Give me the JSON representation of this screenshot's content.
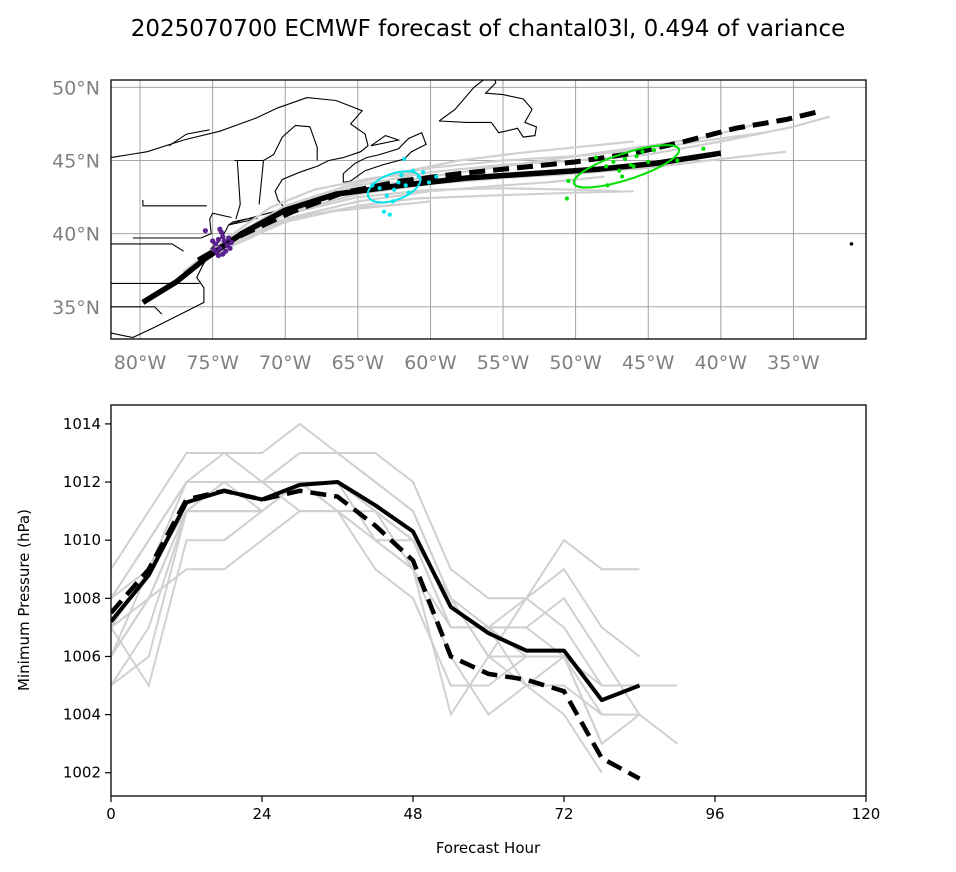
{
  "title": "2025070700 ECMWF forecast of chantal03l, 0.494 of variance",
  "chart_data": [
    {
      "type": "map",
      "lon_range": [
        -82.0,
        -30.0
      ],
      "lat_range": [
        32.8,
        50.5
      ],
      "grid": true,
      "lon_ticks": [
        -80,
        -75,
        -70,
        -65,
        -60,
        -55,
        -50,
        -45,
        -40,
        -35
      ],
      "lon_tick_labels": [
        "80°W",
        "75°W",
        "70°W",
        "65°W",
        "60°W",
        "55°W",
        "50°W",
        "45°W",
        "40°W",
        "35°W"
      ],
      "lat_ticks": [
        35,
        40,
        45,
        50
      ],
      "lat_tick_labels": [
        "35°N",
        "40°N",
        "45°N",
        "50°N"
      ],
      "colors": {
        "ensemble": "#d0d0d0",
        "mean": "#000000",
        "ellipse_day2": "#00e5ee",
        "ellipse_day4": "#00e000",
        "points_day1": "#5b1f8f"
      },
      "mean_track": [
        [
          -79.8,
          35.3
        ],
        [
          -77.5,
          36.7
        ],
        [
          -75.5,
          38.3
        ],
        [
          -73.0,
          40.0
        ],
        [
          -70.0,
          41.6
        ],
        [
          -66.5,
          42.7
        ],
        [
          -62.0,
          43.3
        ],
        [
          -57.5,
          43.8
        ],
        [
          -53.0,
          44.1
        ],
        [
          -48.5,
          44.4
        ],
        [
          -44.5,
          44.8
        ],
        [
          -40.0,
          45.5
        ]
      ],
      "control_track": [
        [
          -76.0,
          38.2
        ],
        [
          -73.0,
          39.9
        ],
        [
          -69.5,
          41.5
        ],
        [
          -66.0,
          42.8
        ],
        [
          -62.0,
          43.6
        ],
        [
          -58.0,
          44.1
        ],
        [
          -54.0,
          44.5
        ],
        [
          -50.0,
          44.9
        ],
        [
          -46.0,
          45.5
        ],
        [
          -42.5,
          46.3
        ],
        [
          -39.0,
          47.2
        ],
        [
          -35.5,
          47.8
        ],
        [
          -33.0,
          48.4
        ]
      ],
      "ensemble_tracks": [
        [
          [
            -77.0,
            37.4
          ],
          [
            -74.0,
            39.6
          ],
          [
            -70.0,
            41.9
          ],
          [
            -65.0,
            43.5
          ],
          [
            -60.0,
            44.5
          ],
          [
            -55.0,
            45.0
          ],
          [
            -50.0,
            45.3
          ],
          [
            -45.0,
            45.8
          ],
          [
            -40.0,
            46.5
          ],
          [
            -37.0,
            46.9
          ]
        ],
        [
          [
            -77.0,
            37.4
          ],
          [
            -74.0,
            39.4
          ],
          [
            -70.0,
            41.4
          ],
          [
            -65.0,
            42.7
          ],
          [
            -60.0,
            43.4
          ],
          [
            -55.0,
            43.8
          ],
          [
            -50.0,
            44.1
          ],
          [
            -45.0,
            44.5
          ],
          [
            -40.0,
            45.1
          ],
          [
            -35.5,
            45.6
          ]
        ],
        [
          [
            -77.0,
            37.4
          ],
          [
            -74.0,
            39.2
          ],
          [
            -70.0,
            41.0
          ],
          [
            -65.0,
            42.2
          ],
          [
            -60.0,
            42.9
          ],
          [
            -55.0,
            43.3
          ],
          [
            -52.0,
            43.5
          ],
          [
            -48.0,
            43.9
          ]
        ],
        [
          [
            -77.0,
            37.4
          ],
          [
            -74.0,
            39.0
          ],
          [
            -70.0,
            40.8
          ],
          [
            -65.0,
            41.9
          ],
          [
            -61.0,
            42.4
          ],
          [
            -56.0,
            42.6
          ],
          [
            -50.0,
            42.8
          ],
          [
            -46.0,
            42.9
          ]
        ],
        [
          [
            -77.0,
            37.4
          ],
          [
            -74.0,
            39.5
          ],
          [
            -70.0,
            41.7
          ],
          [
            -66.0,
            43.2
          ],
          [
            -62.0,
            44.2
          ],
          [
            -58.0,
            45.0
          ],
          [
            -54.0,
            45.5
          ],
          [
            -50.0,
            45.9
          ],
          [
            -46.0,
            46.3
          ]
        ],
        [
          [
            -77.0,
            37.4
          ],
          [
            -74.0,
            39.3
          ],
          [
            -71.0,
            40.8
          ],
          [
            -67.0,
            41.5
          ],
          [
            -63.0,
            41.9
          ],
          [
            -60.0,
            42.2
          ]
        ],
        [
          [
            -77.0,
            37.4
          ],
          [
            -74.0,
            39.7
          ],
          [
            -71.0,
            41.8
          ],
          [
            -68.0,
            43.0
          ],
          [
            -64.0,
            43.8
          ],
          [
            -61.0,
            44.1
          ]
        ],
        [
          [
            -77.0,
            37.4
          ],
          [
            -74.0,
            39.3
          ],
          [
            -70.0,
            41.3
          ],
          [
            -65.0,
            42.5
          ],
          [
            -60.0,
            43.0
          ],
          [
            -55.0,
            43.1
          ],
          [
            -50.0,
            43.0
          ],
          [
            -47.0,
            42.9
          ]
        ],
        [
          [
            -77.0,
            37.4
          ],
          [
            -74.0,
            39.5
          ],
          [
            -70.0,
            41.6
          ],
          [
            -65.0,
            43.0
          ],
          [
            -60.0,
            43.9
          ],
          [
            -55.0,
            44.6
          ],
          [
            -50.0,
            45.3
          ],
          [
            -45.0,
            46.0
          ],
          [
            -41.0,
            46.6
          ],
          [
            -37.5,
            47.5
          ]
        ],
        [
          [
            -77.0,
            37.4
          ],
          [
            -74.0,
            39.2
          ],
          [
            -70.0,
            40.9
          ],
          [
            -66.0,
            41.7
          ],
          [
            -62.0,
            42.0
          ]
        ],
        [
          [
            -77.0,
            37.4
          ],
          [
            -74.0,
            39.6
          ],
          [
            -70.0,
            41.8
          ],
          [
            -65.0,
            43.3
          ],
          [
            -60.0,
            44.2
          ],
          [
            -55.0,
            44.7
          ],
          [
            -50.0,
            45.0
          ],
          [
            -45.0,
            45.4
          ],
          [
            -40.0,
            46.3
          ],
          [
            -35.0,
            47.3
          ],
          [
            -32.5,
            48.0
          ]
        ]
      ],
      "day1_points": [
        [
          -74.8,
          39.3
        ],
        [
          -74.5,
          39.0
        ],
        [
          -74.2,
          39.5
        ],
        [
          -74.9,
          38.9
        ],
        [
          -74.3,
          39.8
        ],
        [
          -74.6,
          39.6
        ],
        [
          -74.0,
          39.2
        ],
        [
          -74.7,
          38.7
        ],
        [
          -74.4,
          40.1
        ],
        [
          -73.9,
          39.7
        ],
        [
          -74.1,
          38.8
        ],
        [
          -75.0,
          39.5
        ],
        [
          -74.5,
          40.3
        ],
        [
          -73.8,
          39.0
        ],
        [
          -74.6,
          38.5
        ],
        [
          -75.5,
          40.2
        ],
        [
          -74.3,
          38.6
        ],
        [
          -73.7,
          39.4
        ]
      ],
      "day2_points": [
        [
          -62.5,
          43.0
        ],
        [
          -63.0,
          42.6
        ],
        [
          -61.7,
          43.3
        ],
        [
          -62.2,
          43.5
        ],
        [
          -60.8,
          43.9
        ],
        [
          -61.5,
          42.8
        ],
        [
          -63.5,
          43.1
        ],
        [
          -62.0,
          44.0
        ],
        [
          -60.5,
          44.2
        ],
        [
          -63.2,
          41.5
        ],
        [
          -62.8,
          41.3
        ],
        [
          -60.1,
          43.5
        ],
        [
          -61.2,
          44.3
        ],
        [
          -62.6,
          42.2
        ],
        [
          -64.0,
          43.3
        ],
        [
          -59.6,
          43.9
        ],
        [
          -61.8,
          45.1
        ]
      ],
      "day2_ellipse": {
        "center": [
          -62.5,
          43.2
        ],
        "rx_deg": 1.9,
        "ry_deg": 0.9,
        "angle_deg": -20
      },
      "day4_points": [
        [
          -47.9,
          44.6
        ],
        [
          -47.4,
          44.9
        ],
        [
          -47.0,
          44.3
        ],
        [
          -46.6,
          45.1
        ],
        [
          -46.2,
          44.7
        ],
        [
          -45.8,
          45.3
        ],
        [
          -45.0,
          44.9
        ],
        [
          -44.6,
          45.7
        ],
        [
          -46.8,
          43.9
        ],
        [
          -48.6,
          45.2
        ],
        [
          -50.5,
          43.6
        ],
        [
          -50.6,
          42.4
        ],
        [
          -47.8,
          43.3
        ],
        [
          -43.0,
          45.0
        ],
        [
          -45.4,
          45.6
        ],
        [
          -41.2,
          45.8
        ],
        [
          -46.0,
          44.6
        ]
      ],
      "day4_ellipse": {
        "center": [
          -46.5,
          44.6
        ],
        "rx_deg": 3.8,
        "ry_deg": 0.9,
        "angle_deg": -18
      },
      "outlier_point": [
        -31.0,
        39.3
      ]
    },
    {
      "type": "line",
      "xlabel": "Forecast Hour",
      "ylabel": "Minimum Pressure (hPa)",
      "xlim": [
        0,
        120
      ],
      "ylim": [
        1001.2,
        1014.65
      ],
      "xticks": [
        0,
        24,
        48,
        72,
        96,
        120
      ],
      "yticks": [
        1002,
        1004,
        1006,
        1008,
        1010,
        1012,
        1014
      ],
      "mean_line": {
        "x": [
          0,
          6,
          12,
          18,
          24,
          30,
          36,
          42,
          48,
          54,
          60,
          66,
          72,
          78,
          84
        ],
        "y": [
          1007.2,
          1008.8,
          1011.3,
          1011.7,
          1011.4,
          1011.9,
          1012.0,
          1011.2,
          1010.3,
          1007.7,
          1006.8,
          1006.2,
          1006.2,
          1004.5,
          1005.0
        ]
      },
      "control_line": {
        "x": [
          0,
          6,
          12,
          18,
          24,
          30,
          36,
          42,
          48,
          54,
          60,
          66,
          72,
          78,
          84
        ],
        "y": [
          1007.5,
          1009.0,
          1011.4,
          1011.7,
          1011.4,
          1011.7,
          1011.5,
          1010.5,
          1009.3,
          1006.0,
          1005.4,
          1005.2,
          1004.8,
          1002.5,
          1001.8
        ]
      },
      "ensemble_lines": [
        {
          "x": [
            0,
            6,
            12,
            18,
            24,
            30,
            36,
            42,
            48,
            54,
            60,
            66,
            72,
            78,
            84
          ],
          "y": [
            1009,
            1011,
            1013,
            1013,
            1012,
            1013,
            1013,
            1012,
            1011,
            1008,
            1007,
            1007,
            1006,
            1005,
            1005
          ]
        },
        {
          "x": [
            0,
            6,
            12,
            18,
            24,
            30,
            36,
            42,
            48,
            54,
            60,
            66,
            72,
            78,
            84,
            90
          ],
          "y": [
            1008,
            1010,
            1012,
            1013,
            1013,
            1014,
            1013,
            1012,
            1011,
            1008,
            1007,
            1008,
            1007,
            1005,
            1005,
            1005
          ]
        },
        {
          "x": [
            0,
            6,
            12,
            18,
            24,
            30,
            36,
            42,
            48,
            54,
            60,
            66,
            72,
            78,
            84,
            90
          ],
          "y": [
            1007,
            1009,
            1011,
            1012,
            1012,
            1012,
            1012,
            1011,
            1010,
            1007,
            1007,
            1007,
            1008,
            1006,
            1004,
            1003
          ]
        },
        {
          "x": [
            0,
            6,
            12,
            18,
            24,
            30,
            36,
            42,
            48,
            54,
            60,
            66,
            72,
            78
          ],
          "y": [
            1006,
            1008,
            1011,
            1011,
            1011,
            1012,
            1011,
            1011,
            1009,
            1007,
            1007,
            1006,
            1006,
            1003
          ]
        },
        {
          "x": [
            0,
            6,
            12,
            18,
            24,
            30,
            36,
            42,
            48,
            54,
            60,
            66,
            72,
            78,
            84
          ],
          "y": [
            1005,
            1007,
            1011,
            1011,
            1011,
            1012,
            1012,
            1010,
            1009,
            1004,
            1006,
            1005,
            1005,
            1004,
            1004
          ]
        },
        {
          "x": [
            0,
            6,
            12,
            18,
            24,
            30,
            36,
            42,
            48,
            54,
            60,
            66,
            72
          ],
          "y": [
            1005,
            1006,
            1011,
            1012,
            1012,
            1011,
            1011,
            1009,
            1008,
            1005,
            1005,
            1006,
            1006
          ]
        },
        {
          "x": [
            0,
            6,
            12,
            18,
            24,
            30,
            36,
            42,
            48,
            54,
            60,
            66,
            72,
            78,
            84
          ],
          "y": [
            1007,
            1005,
            1010,
            1010,
            1011,
            1012,
            1012,
            1011,
            1010,
            1008,
            1006,
            1008,
            1009,
            1007,
            1006
          ]
        },
        {
          "x": [
            0,
            6,
            12,
            18,
            24,
            30,
            36,
            42,
            48,
            54,
            60,
            66,
            72,
            78,
            84
          ],
          "y": [
            1008,
            1010,
            1012,
            1012,
            1012,
            1013,
            1013,
            1013,
            1012,
            1009,
            1008,
            1008,
            1010,
            1009,
            1009
          ]
        },
        {
          "x": [
            0,
            6,
            12,
            18,
            24,
            30,
            36,
            42,
            48,
            54,
            60,
            66,
            72,
            78
          ],
          "y": [
            1006,
            1009,
            1011,
            1012,
            1011,
            1012,
            1011,
            1010,
            1009,
            1006,
            1004,
            1005,
            1004,
            1002
          ]
        },
        {
          "x": [
            0,
            6,
            12,
            18,
            24,
            30,
            36,
            42,
            48,
            54,
            60,
            66,
            72,
            78,
            84
          ],
          "y": [
            1008,
            1009,
            1012,
            1012,
            1012,
            1012,
            1012,
            1011,
            1010,
            1008,
            1006,
            1006,
            1006,
            1003,
            1004
          ]
        },
        {
          "x": [
            0,
            6,
            12,
            18,
            24,
            30,
            36,
            42,
            48,
            54,
            60,
            66,
            72,
            78
          ],
          "y": [
            1006,
            1008,
            1011,
            1011,
            1011,
            1012,
            1012,
            1010,
            1010,
            1007,
            1007,
            1005,
            1006,
            1004
          ]
        },
        {
          "x": [
            0,
            6,
            12,
            18,
            24,
            30,
            36,
            42,
            48
          ],
          "y": [
            1007,
            1008,
            1009,
            1009,
            1010,
            1011,
            1011,
            1010,
            1009
          ]
        }
      ]
    }
  ]
}
